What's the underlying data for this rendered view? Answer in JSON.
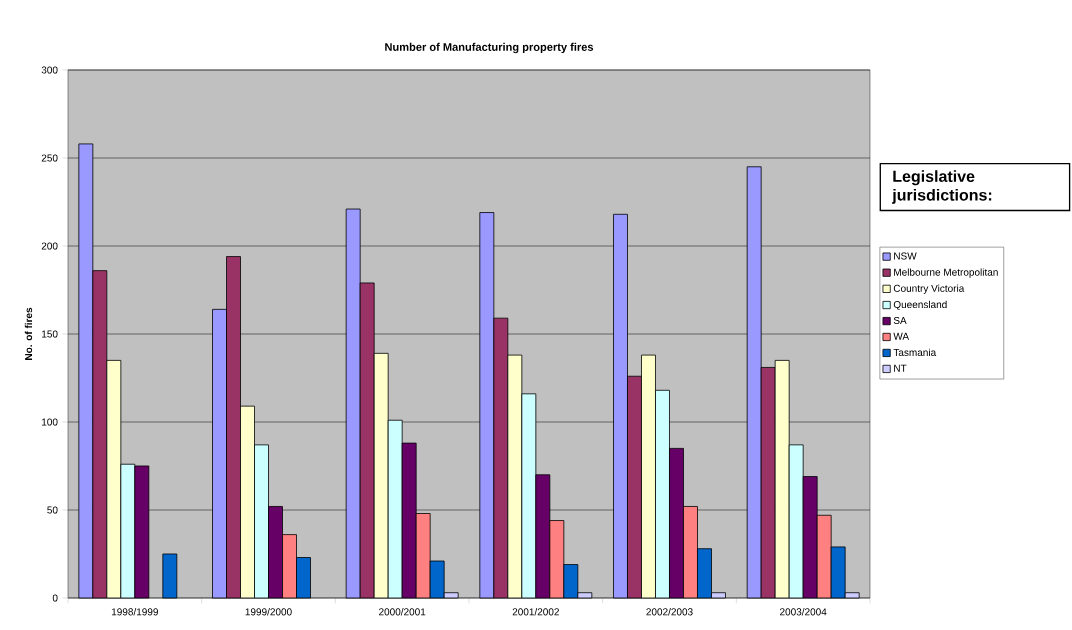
{
  "chart_data": {
    "type": "bar",
    "title": "Number of Manufacturing property fires",
    "ylabel": "No. of fires",
    "legend_title": "Legislative jurisdictions:",
    "categories": [
      "1998/1999",
      "1999/2000",
      "2000/2001",
      "2001/2002",
      "2002/2003",
      "2003/2004"
    ],
    "series": [
      {
        "name": "NSW",
        "color": "#9999ff",
        "values": [
          258,
          164,
          221,
          219,
          218,
          245
        ]
      },
      {
        "name": "Melbourne Metropolitan",
        "color": "#993366",
        "values": [
          186,
          194,
          179,
          159,
          126,
          131
        ]
      },
      {
        "name": "Country Victoria",
        "color": "#ffffcc",
        "values": [
          135,
          109,
          139,
          138,
          138,
          135
        ]
      },
      {
        "name": "Queensland",
        "color": "#ccffff",
        "values": [
          76,
          87,
          101,
          116,
          118,
          87
        ]
      },
      {
        "name": "SA",
        "color": "#660066",
        "values": [
          75,
          52,
          88,
          70,
          85,
          69
        ]
      },
      {
        "name": "WA",
        "color": "#ff8080",
        "values": [
          null,
          36,
          48,
          44,
          52,
          47
        ]
      },
      {
        "name": "Tasmania",
        "color": "#0066cc",
        "values": [
          25,
          23,
          21,
          19,
          28,
          29
        ]
      },
      {
        "name": "NT",
        "color": "#ccccff",
        "values": [
          null,
          null,
          3,
          3,
          3,
          3
        ]
      }
    ],
    "ylim": [
      0,
      300
    ],
    "yticks": [
      0,
      50,
      100,
      150,
      200,
      250,
      300
    ],
    "grid": "y",
    "legend": "right"
  }
}
